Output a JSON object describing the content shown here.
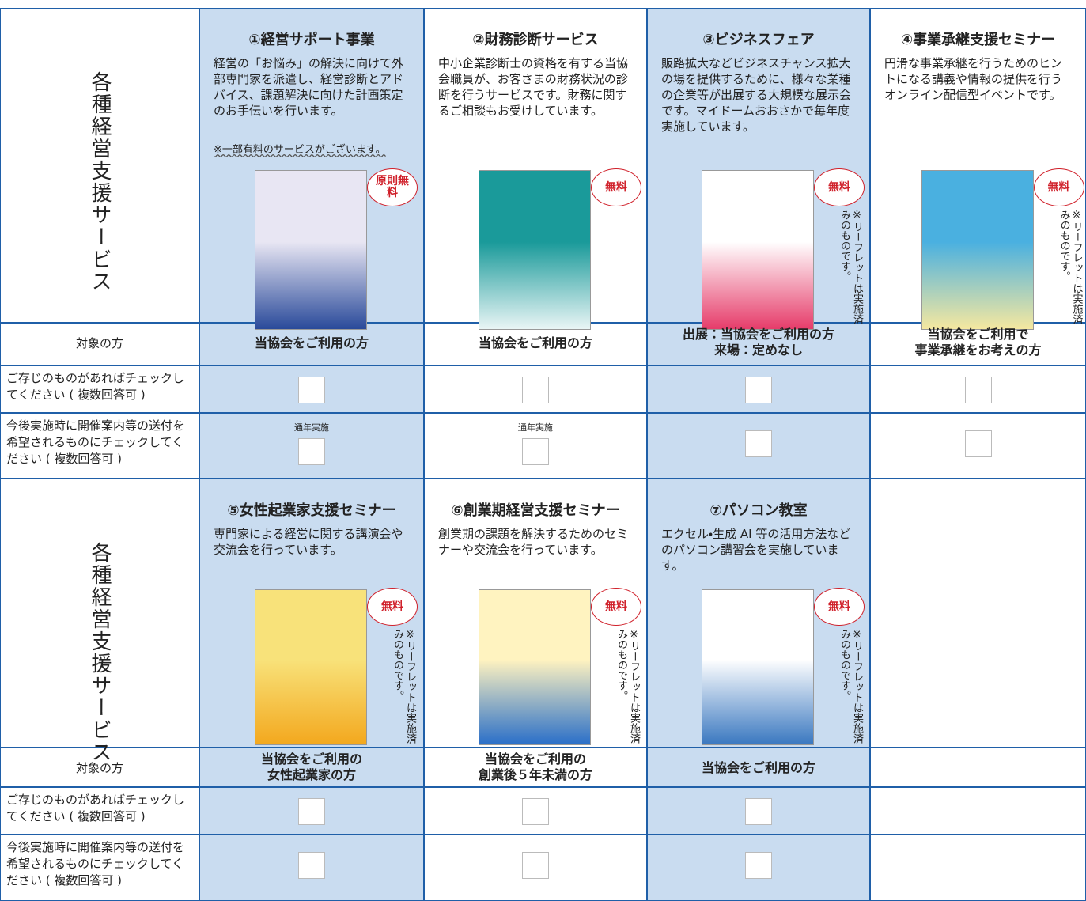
{
  "sections": [
    {
      "label": "各種経営支援サービス",
      "row_labels": [
        "対象の方",
        "ご存じのものがあればチェックしてください ( 複数回答可 )",
        "今後実施時に開催案内等の送付を希望されるものにチェックしてください ( 複数回答可 )"
      ],
      "services": [
        {
          "title": "①経営サポート事業",
          "description": "経営の「お悩み」の解決に向けて外部専門家を派遣し、経営診断とアドバイス、課題解決に向けた計画策定のお手伝いを行います。",
          "note": "※一部有料のサービスがございます。",
          "badge": "原則無料",
          "target": [
            "当協会をご利用の方"
          ],
          "schedule_note": "通年実施"
        },
        {
          "title": "②財務診断サービス",
          "description": "中小企業診断士の資格を有する当協会職員が、お客さまの財務状況の診断を行うサービスです。財務に関するご相談もお受けしています。",
          "badge": "無料",
          "target": [
            "当協会をご利用の方"
          ],
          "schedule_note": "通年実施"
        },
        {
          "title": "③ビジネスフェア",
          "description": "販路拡大などビジネスチャンス拡大の場を提供するために、様々な業種の企業等が出展する大規模な展示会です。マイドームおおさかで毎年度実施しています。",
          "badge": "無料",
          "leaflet_note": "※リーフレットは実施済みのものです。",
          "target": [
            "出展：当協会をご利用の方",
            "来場：定めなし"
          ]
        },
        {
          "title": "④事業承継支援セミナー",
          "description": "円滑な事業承継を行うためのヒントになる講義や情報の提供を行うオンライン配信型イベントです。",
          "badge": "無料",
          "leaflet_note": "※リーフレットは実施済みのものです。",
          "target": [
            "当協会をご利用で",
            "事業承継をお考えの方"
          ]
        }
      ]
    },
    {
      "label": "各種経営支援サービス",
      "row_labels": [
        "対象の方",
        "ご存じのものがあればチェックしてください ( 複数回答可 )",
        "今後実施時に開催案内等の送付を希望されるものにチェックしてください ( 複数回答可 )"
      ],
      "services": [
        {
          "title": "⑤女性起業家支援セミナー",
          "description": "専門家による経営に関する講演会や交流会を行っています。",
          "badge": "無料",
          "leaflet_note": "※リーフレットは実施済みのものです。",
          "target": [
            "当協会をご利用の",
            "女性起業家の方"
          ]
        },
        {
          "title": "⑥創業期経営支援セミナー",
          "description": "創業期の課題を解決するためのセミナーや交流会を行っています。",
          "badge": "無料",
          "leaflet_note": "※リーフレットは実施済みのものです。",
          "target": [
            "当協会をご利用の",
            "創業後５年未満の方"
          ]
        },
        {
          "title": "⑦パソコン教室",
          "description": "エクセル・生成 AI 等の活用方法などのパソコン講習会を実施しています。",
          "badge": "無料",
          "leaflet_note": "※リーフレットは実施済みのものです。",
          "target": [
            "当協会をご利用の方"
          ]
        }
      ]
    }
  ]
}
